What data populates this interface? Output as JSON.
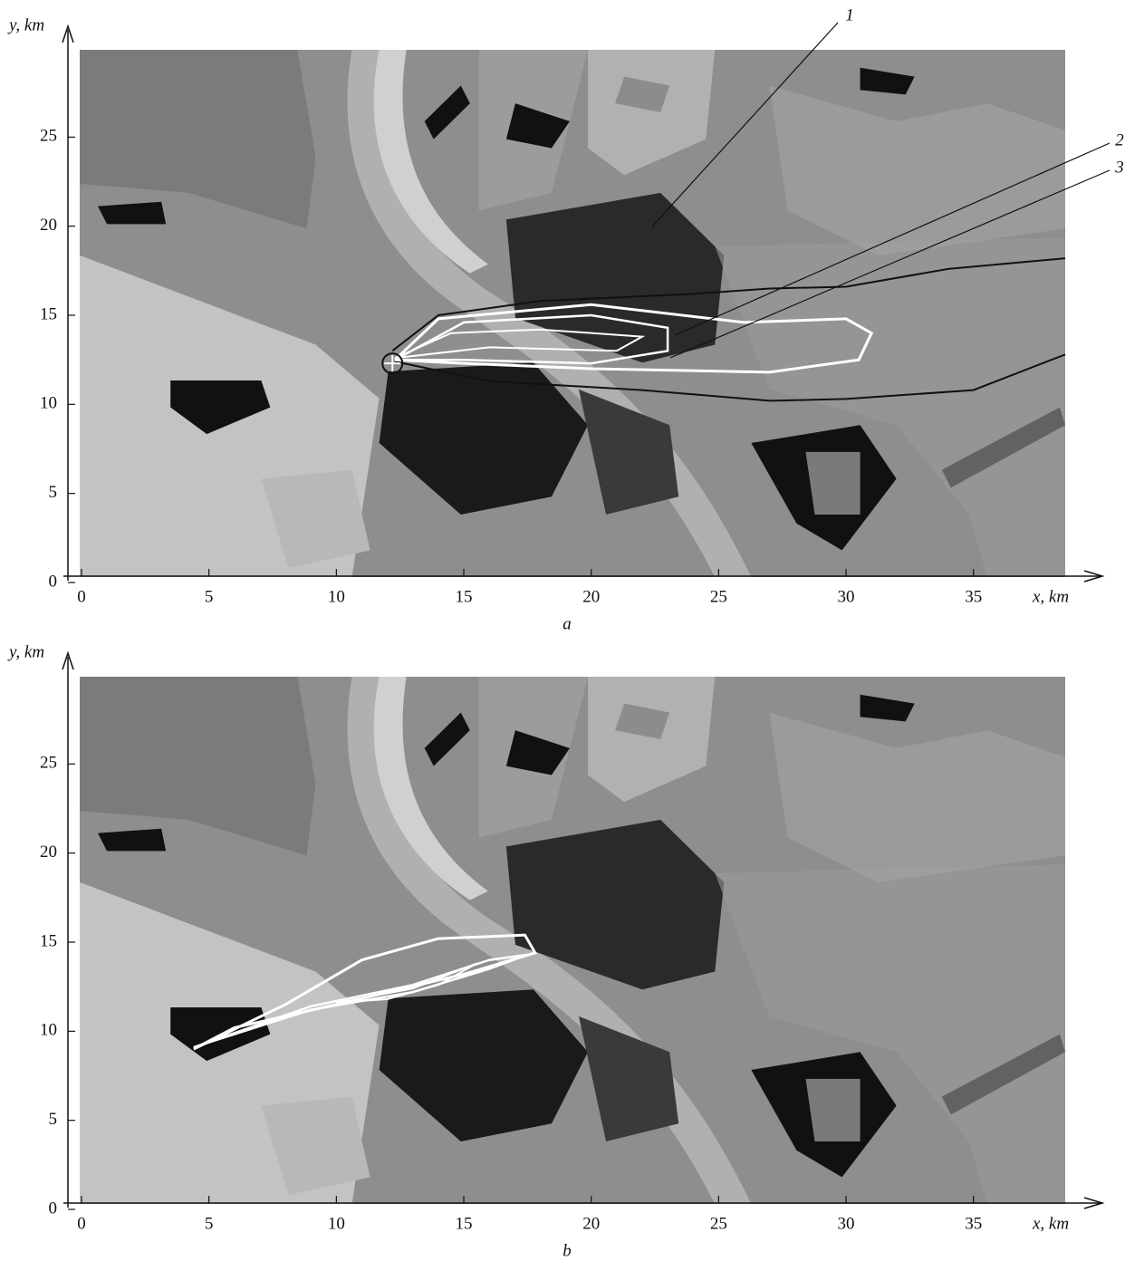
{
  "chart_data": [
    {
      "type": "map",
      "caption": "a",
      "xlabel": "x, km",
      "ylabel": "y, km",
      "xlim": [
        0,
        38.6
      ],
      "ylim": [
        0,
        30
      ],
      "xticks": [
        0,
        5,
        10,
        15,
        20,
        25,
        30,
        35
      ],
      "yticks": [
        0,
        5,
        10,
        15,
        20,
        25
      ],
      "annotations": [
        "1",
        "2",
        "3"
      ]
    },
    {
      "type": "map",
      "caption": "b",
      "xlabel": "x, km",
      "ylabel": "y, km",
      "xlim": [
        0,
        38.6
      ],
      "ylim": [
        0,
        30
      ],
      "xticks": [
        0,
        5,
        10,
        15,
        20,
        25,
        30,
        35
      ],
      "yticks": [
        0,
        5,
        10,
        15,
        20,
        25
      ]
    }
  ]
}
